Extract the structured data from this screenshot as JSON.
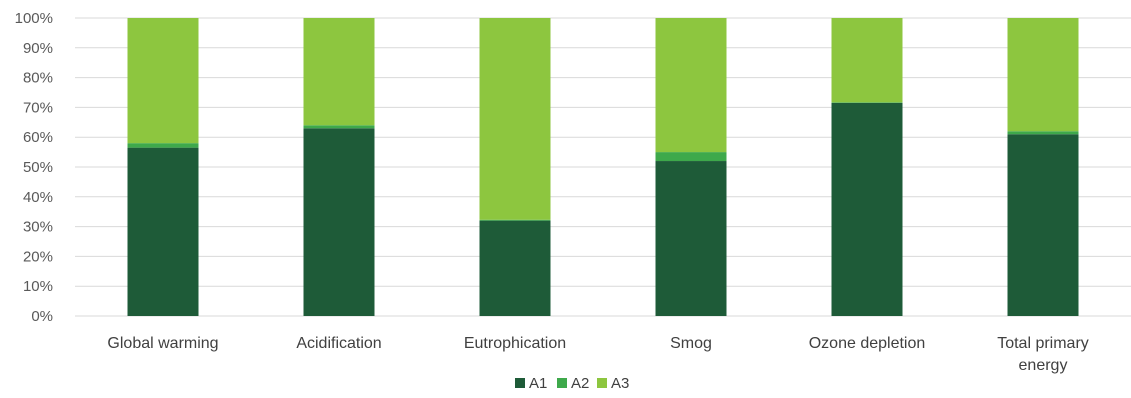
{
  "chart_data": {
    "type": "bar",
    "stacked": "percent",
    "categories": [
      "Global warming",
      "Acidification",
      "Eutrophication",
      "Smog",
      "Ozone depletion",
      "Total primary energy"
    ],
    "category_lines": [
      [
        "Global warming"
      ],
      [
        "Acidification"
      ],
      [
        "Eutrophication"
      ],
      [
        "Smog"
      ],
      [
        "Ozone depletion"
      ],
      [
        "Total primary",
        "energy"
      ]
    ],
    "series": [
      {
        "name": "A1",
        "color": "#1e5b38",
        "values": [
          56.5,
          63,
          32,
          52,
          71.5,
          61
        ]
      },
      {
        "name": "A2",
        "color": "#3ea94b",
        "values": [
          1.5,
          1,
          0.3,
          3,
          0.2,
          1
        ]
      },
      {
        "name": "A3",
        "color": "#8dc63f",
        "values": [
          42,
          36,
          67.7,
          45,
          28.3,
          38
        ]
      }
    ],
    "ylim": [
      0,
      100
    ],
    "yticks": [
      "0%",
      "10%",
      "20%",
      "30%",
      "40%",
      "50%",
      "60%",
      "70%",
      "80%",
      "90%",
      "100%"
    ],
    "grid": true,
    "legend_position": "bottom"
  }
}
